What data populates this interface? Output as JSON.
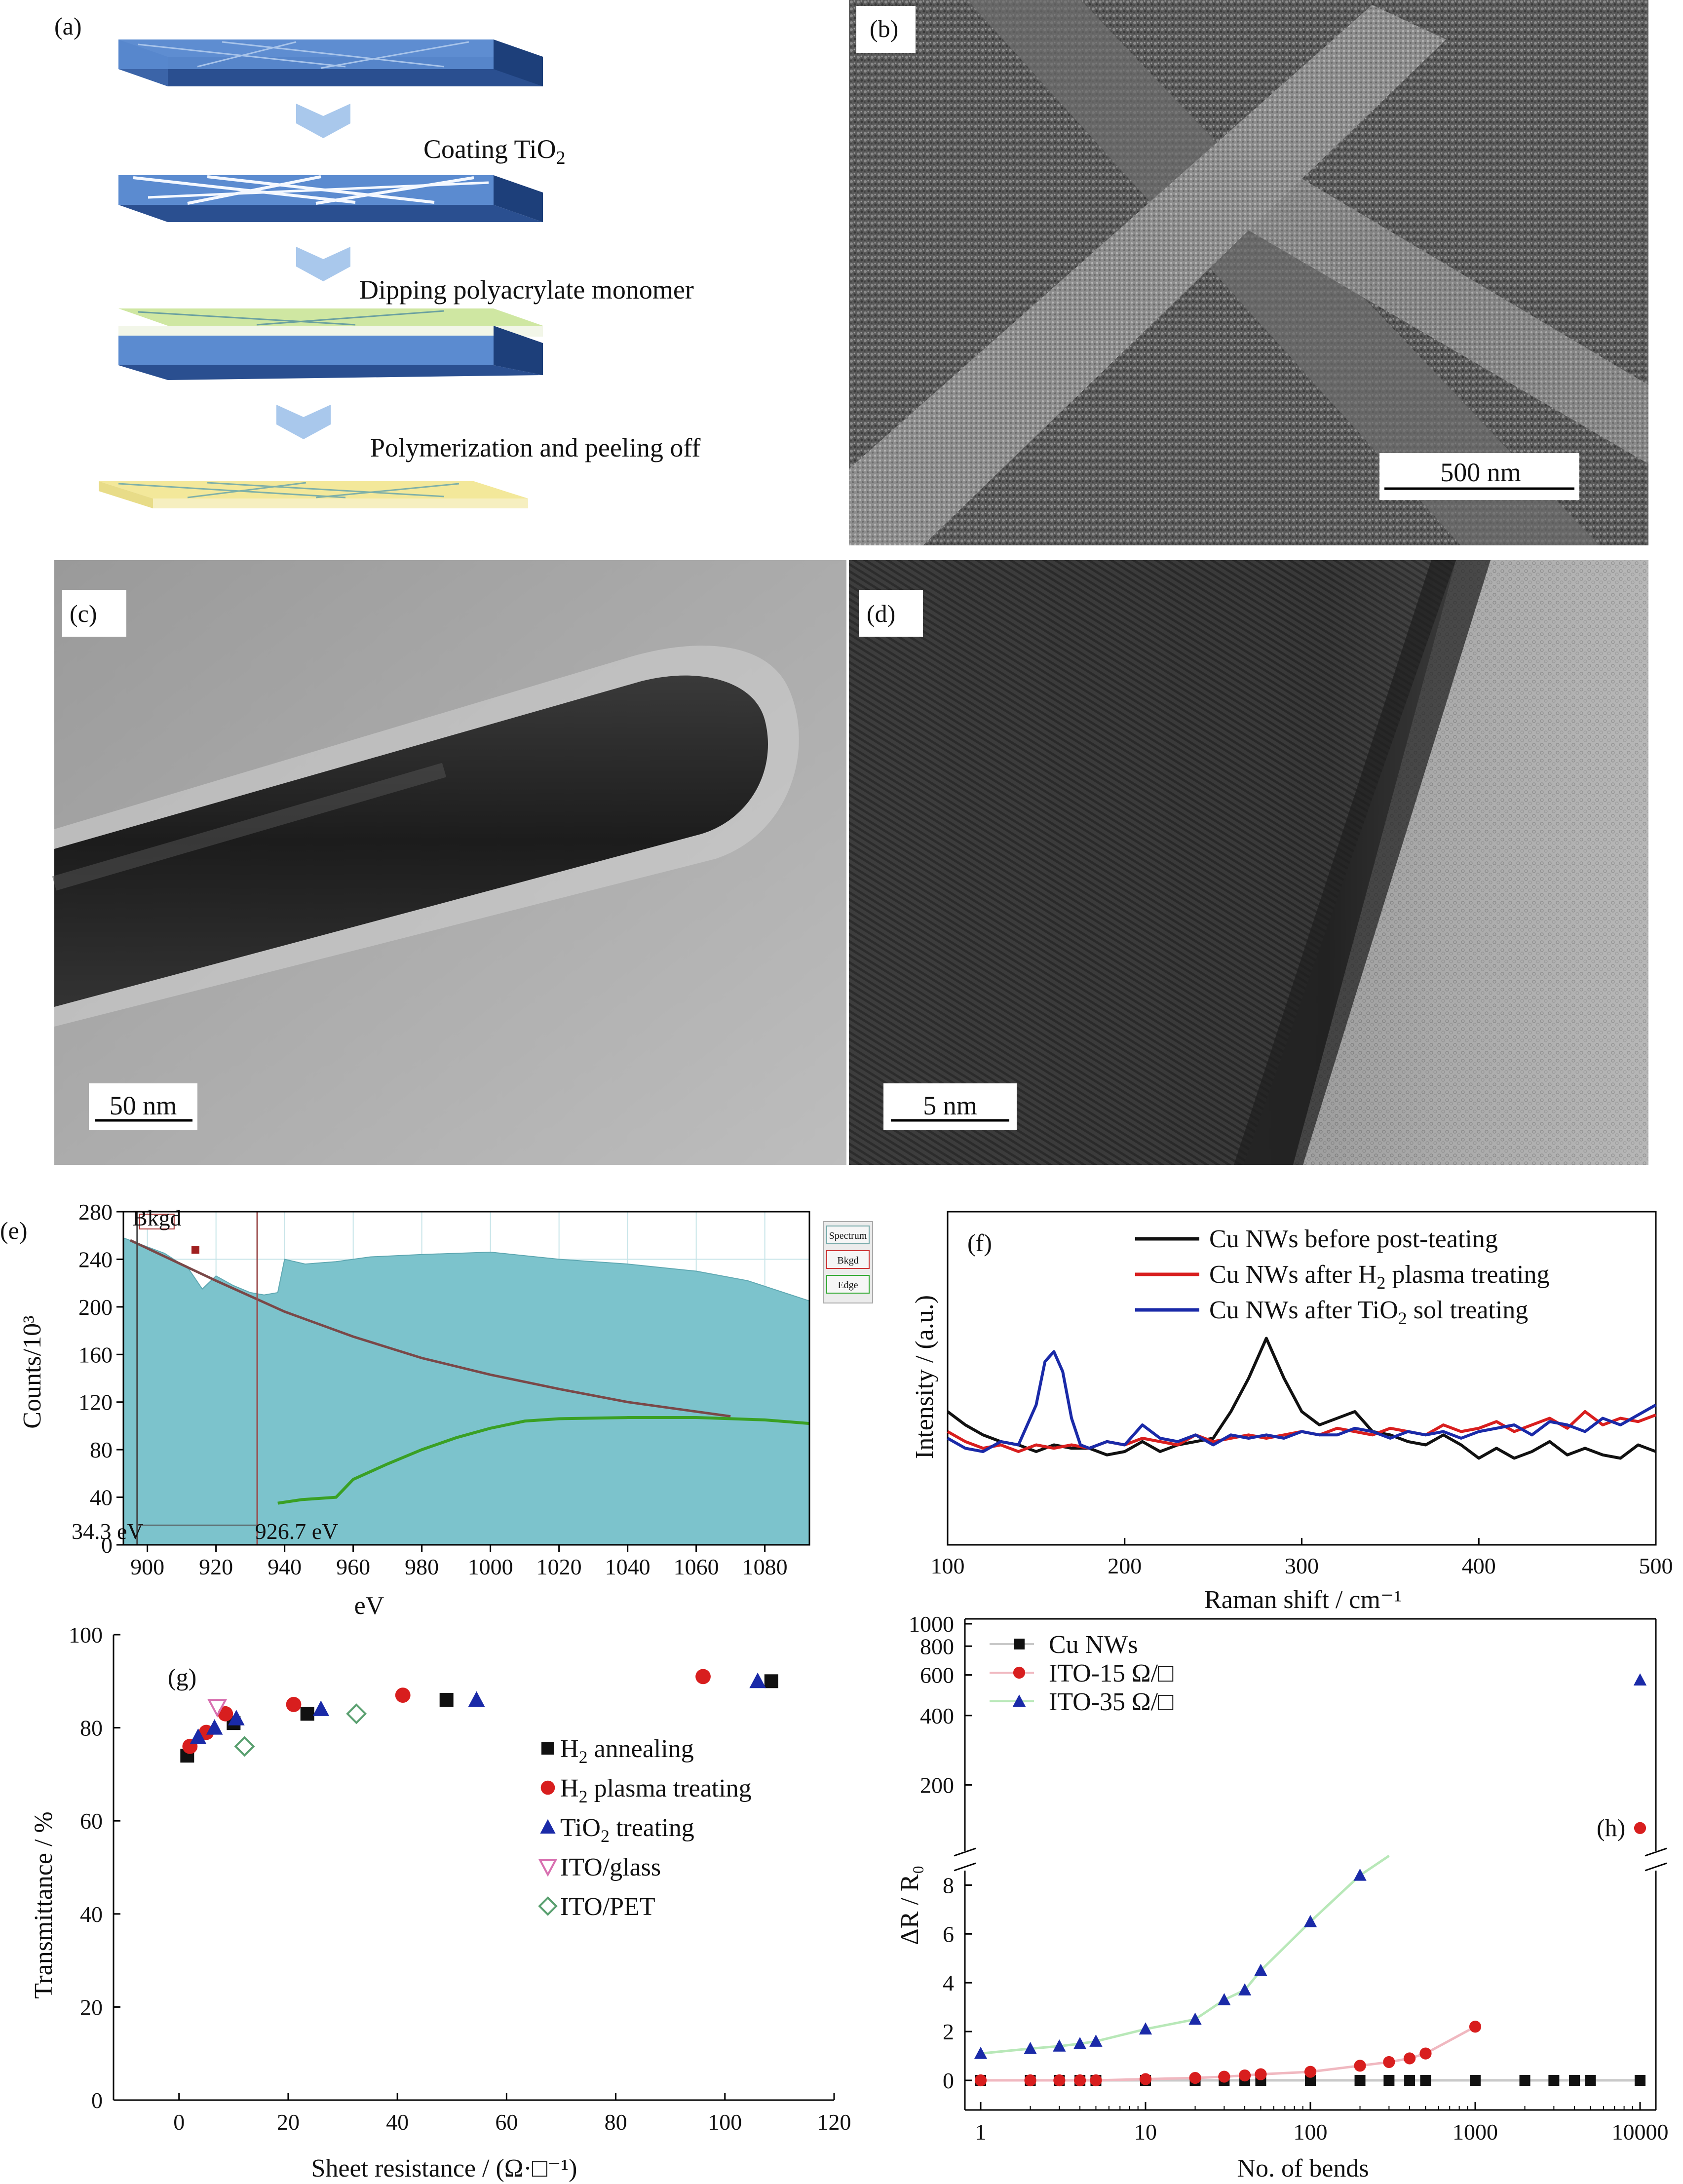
{
  "panels": {
    "a": {
      "letter": "(a)",
      "steps": [
        "Coating TiO",
        "Dipping polyacrylate monomer",
        "Polymerization and peeling off"
      ],
      "sub2": "2"
    },
    "b": {
      "letter": "(b)",
      "scale_bar": "500 nm"
    },
    "c": {
      "letter": "(c)",
      "scale_bar": "50 nm"
    },
    "d": {
      "letter": "(d)",
      "scale_bar": "5 nm"
    }
  },
  "colors": {
    "black_series": "#111111",
    "red_series": "#d81e1e",
    "blue_series": "#1a2aa8",
    "eels_fill": "#7cc3cc",
    "eels_edge": "#3aa024",
    "pink_series": "#d870b0",
    "green_series": "#5aa070"
  },
  "chart_data": [
    {
      "id": "e",
      "type": "area",
      "panel_letter": "(e)",
      "xlabel": "eV",
      "ylabel": "Counts/10³",
      "xlim": [
        893,
        1093
      ],
      "ylim": [
        0,
        280
      ],
      "xticks": [
        900,
        920,
        940,
        960,
        980,
        1000,
        1020,
        1040,
        1060,
        1080
      ],
      "yticks": [
        0,
        40,
        80,
        120,
        160,
        200,
        240,
        280
      ],
      "window_markers": [
        {
          "x": 897,
          "label": "34.3 eV"
        },
        {
          "x": 932,
          "label": "926.7 eV"
        }
      ],
      "bkgd_tag": "Bkgd",
      "legend_buttons": [
        "Spectrum",
        "Bkgd",
        "Edge"
      ],
      "spectrum": {
        "x": [
          893,
          905,
          912,
          916,
          920,
          925,
          930,
          934,
          938,
          940,
          946,
          955,
          965,
          980,
          1000,
          1020,
          1040,
          1060,
          1075,
          1093
        ],
        "y": [
          258,
          245,
          232,
          215,
          226,
          218,
          212,
          210,
          212,
          240,
          236,
          238,
          242,
          244,
          246,
          240,
          236,
          230,
          222,
          205
        ]
      },
      "background": {
        "x": [
          895,
          920,
          940,
          960,
          980,
          1000,
          1020,
          1040,
          1060,
          1070
        ],
        "y": [
          256,
          222,
          196,
          175,
          157,
          143,
          131,
          120,
          112,
          108
        ]
      },
      "edge": {
        "x": [
          938,
          945,
          955,
          960,
          970,
          980,
          990,
          1000,
          1010,
          1020,
          1040,
          1060,
          1080,
          1093
        ],
        "y": [
          35,
          38,
          40,
          55,
          68,
          80,
          90,
          98,
          104,
          106,
          107,
          107,
          105,
          102
        ]
      }
    },
    {
      "id": "f",
      "type": "line",
      "panel_letter": "(f)",
      "xlabel": "Raman shift / cm⁻¹",
      "ylabel": "Intensity / (a.u.)",
      "xlim": [
        100,
        500
      ],
      "xticks": [
        100,
        200,
        300,
        400,
        500
      ],
      "series": [
        {
          "name": "Cu NWs before post-teating",
          "color": "#111111",
          "x": [
            100,
            110,
            120,
            130,
            140,
            150,
            160,
            170,
            180,
            190,
            200,
            210,
            220,
            230,
            240,
            250,
            260,
            270,
            280,
            290,
            300,
            310,
            320,
            330,
            340,
            350,
            360,
            370,
            380,
            390,
            400,
            410,
            420,
            430,
            440,
            450,
            460,
            470,
            480,
            490,
            500
          ],
          "y": [
            0.4,
            0.36,
            0.33,
            0.31,
            0.3,
            0.28,
            0.3,
            0.29,
            0.29,
            0.27,
            0.28,
            0.31,
            0.28,
            0.3,
            0.31,
            0.32,
            0.4,
            0.5,
            0.62,
            0.5,
            0.4,
            0.36,
            0.38,
            0.4,
            0.34,
            0.33,
            0.31,
            0.3,
            0.33,
            0.3,
            0.26,
            0.29,
            0.26,
            0.28,
            0.31,
            0.27,
            0.29,
            0.27,
            0.26,
            0.3,
            0.28
          ]
        },
        {
          "name": "Cu NWs after H plasma treating",
          "name_sub": "2",
          "color": "#d81e1e",
          "x": [
            100,
            110,
            120,
            130,
            140,
            150,
            160,
            170,
            180,
            190,
            200,
            210,
            220,
            230,
            240,
            250,
            260,
            270,
            280,
            290,
            300,
            310,
            320,
            330,
            340,
            350,
            360,
            370,
            380,
            390,
            400,
            410,
            420,
            430,
            440,
            450,
            460,
            470,
            480,
            490,
            500
          ],
          "y": [
            0.34,
            0.31,
            0.29,
            0.3,
            0.28,
            0.3,
            0.29,
            0.3,
            0.29,
            0.31,
            0.3,
            0.32,
            0.31,
            0.3,
            0.33,
            0.31,
            0.32,
            0.33,
            0.32,
            0.33,
            0.34,
            0.33,
            0.35,
            0.34,
            0.33,
            0.35,
            0.34,
            0.33,
            0.36,
            0.34,
            0.35,
            0.37,
            0.34,
            0.36,
            0.38,
            0.35,
            0.4,
            0.36,
            0.38,
            0.37,
            0.39
          ]
        },
        {
          "name": "Cu NWs after TiO sol treating",
          "name_sub": "2",
          "color": "#1a2aa8",
          "x": [
            100,
            110,
            120,
            130,
            140,
            150,
            155,
            160,
            165,
            170,
            175,
            180,
            190,
            200,
            210,
            220,
            230,
            240,
            250,
            260,
            270,
            280,
            290,
            300,
            310,
            320,
            330,
            340,
            350,
            360,
            370,
            380,
            390,
            400,
            410,
            420,
            430,
            440,
            450,
            460,
            470,
            480,
            490,
            500
          ],
          "y": [
            0.32,
            0.29,
            0.28,
            0.31,
            0.3,
            0.42,
            0.55,
            0.58,
            0.52,
            0.38,
            0.3,
            0.29,
            0.31,
            0.3,
            0.36,
            0.32,
            0.31,
            0.33,
            0.3,
            0.33,
            0.32,
            0.33,
            0.32,
            0.34,
            0.33,
            0.33,
            0.35,
            0.34,
            0.32,
            0.34,
            0.33,
            0.34,
            0.32,
            0.34,
            0.35,
            0.36,
            0.33,
            0.37,
            0.36,
            0.34,
            0.38,
            0.36,
            0.39,
            0.42
          ]
        }
      ]
    },
    {
      "id": "g",
      "type": "scatter",
      "panel_letter": "(g)",
      "xlabel": "Sheet resistance / (Ω·□⁻¹)",
      "ylabel": "Transmittance / %",
      "xlim": [
        -12,
        120
      ],
      "ylim": [
        0,
        100
      ],
      "xticks": [
        0,
        20,
        40,
        60,
        80,
        100,
        120
      ],
      "yticks": [
        0,
        20,
        40,
        60,
        80,
        100
      ],
      "series": [
        {
          "name": "H annealing",
          "name_sub": "2",
          "marker": "square",
          "color": "#111111",
          "x": [
            1.5,
            10,
            23.5,
            49,
            108.5
          ],
          "y": [
            74,
            81,
            83,
            86,
            90
          ]
        },
        {
          "name": "H plasma treating",
          "name_sub": "2",
          "marker": "circle",
          "color": "#d81e1e",
          "x": [
            2,
            5,
            8.5,
            21,
            41,
            96
          ],
          "y": [
            76,
            79,
            83,
            85,
            87,
            91
          ]
        },
        {
          "name": "TiO treating",
          "name_sub": "2",
          "marker": "triangle",
          "color": "#1a2aa8",
          "x": [
            3.5,
            6.5,
            10.5,
            26,
            54.5,
            106
          ],
          "y": [
            78,
            80,
            82,
            84,
            86,
            90
          ]
        },
        {
          "name": "ITO/glass",
          "marker": "triangle-down",
          "color": "#d870b0",
          "x": [
            7
          ],
          "y": [
            84.5
          ]
        },
        {
          "name": "ITO/PET",
          "marker": "diamond",
          "color": "#5aa070",
          "x": [
            12,
            32.5
          ],
          "y": [
            76,
            83
          ]
        }
      ]
    },
    {
      "id": "h",
      "type": "line",
      "panel_letter": "(h)",
      "xlabel": "No. of bends",
      "ylabel": "ΔR / R₀",
      "xscale": "log",
      "xlim": [
        1,
        10000
      ],
      "xticks": [
        "1",
        "10",
        "100",
        "1000",
        "10000"
      ],
      "yticks_lower": [
        0,
        2,
        4,
        6,
        8
      ],
      "yticks_upper": [
        200,
        400,
        600,
        800,
        1000
      ],
      "series": [
        {
          "name": "Cu NWs",
          "marker": "square",
          "color": "#111111",
          "x": [
            1,
            2,
            3,
            4,
            5,
            10,
            20,
            30,
            40,
            50,
            100,
            200,
            300,
            400,
            500,
            1000,
            2000,
            3000,
            4000,
            5000,
            10000
          ],
          "y": [
            0,
            0,
            0,
            0,
            0,
            0,
            0,
            0,
            0,
            0,
            0,
            0,
            0,
            0,
            0,
            0,
            0,
            0,
            0,
            0,
            0
          ]
        },
        {
          "name": "ITO-15 Ω/□",
          "marker": "circle",
          "color": "#d81e1e",
          "x": [
            1,
            2,
            3,
            4,
            5,
            10,
            20,
            30,
            40,
            50,
            100,
            200,
            300,
            400,
            500,
            1000,
            10000
          ],
          "y": [
            0,
            0,
            0,
            0,
            0,
            0.05,
            0.1,
            0.15,
            0.2,
            0.25,
            0.35,
            0.6,
            0.75,
            0.9,
            1.1,
            2.2,
            130
          ]
        },
        {
          "name": "ITO-35 Ω/□",
          "marker": "triangle",
          "color": "#1a2aa8",
          "x": [
            1,
            2,
            3,
            4,
            5,
            10,
            20,
            30,
            40,
            50,
            100,
            200,
            10000
          ],
          "y": [
            1.1,
            1.3,
            1.4,
            1.5,
            1.6,
            2.1,
            2.5,
            3.3,
            3.7,
            4.5,
            6.5,
            8.4,
            570
          ]
        }
      ]
    }
  ]
}
